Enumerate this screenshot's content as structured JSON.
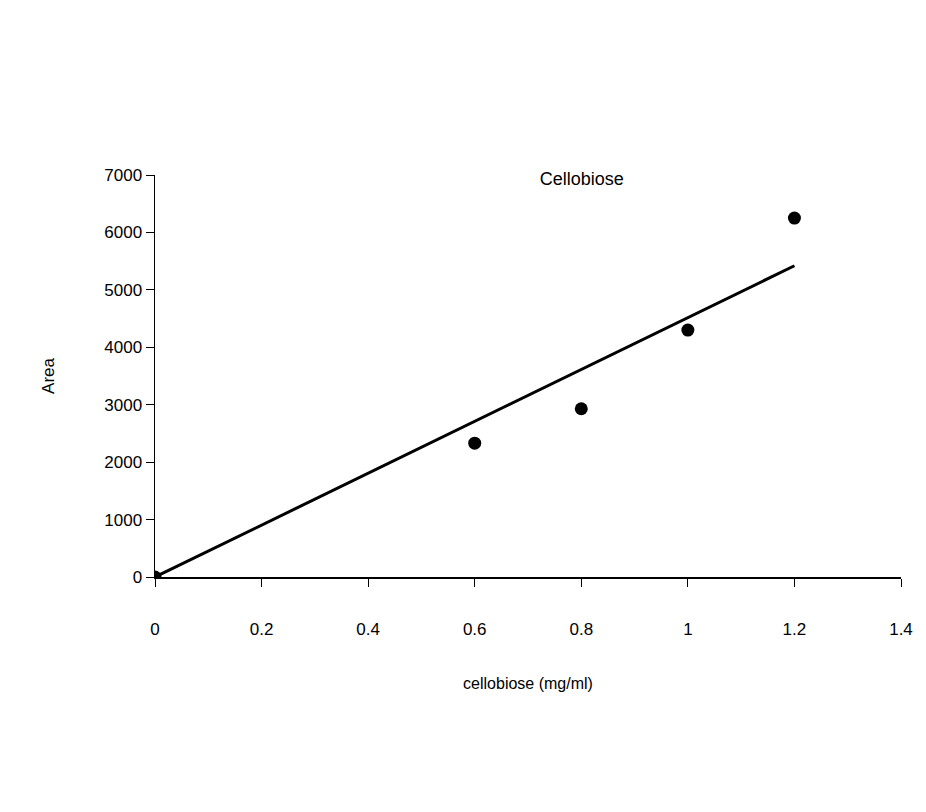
{
  "chart_data": {
    "type": "scatter",
    "title": "Cellobiose",
    "x_label": "cellobiose (mg/ml)",
    "y_label": "Area",
    "series": [
      {
        "type": "scatter",
        "marker": "circle",
        "color": "#000000",
        "x": [
          0,
          0.6,
          0.8,
          1,
          1.2
        ],
        "values": [
          0,
          2330,
          2930,
          4300,
          6250
        ]
      },
      {
        "type": "line",
        "line_style": "solid",
        "color": "#000000",
        "x": [
          0,
          1.2
        ],
        "values": [
          0,
          5420
        ]
      }
    ],
    "xlim": [
      0,
      1.4
    ],
    "xticks": [
      0,
      0.2,
      0.4,
      0.6,
      0.8,
      1,
      1.2,
      1.4
    ],
    "ylim": [
      0,
      7000
    ],
    "yticks": [
      0,
      1000,
      2000,
      3000,
      4000,
      5000,
      6000,
      7000
    ],
    "grid": false
  }
}
